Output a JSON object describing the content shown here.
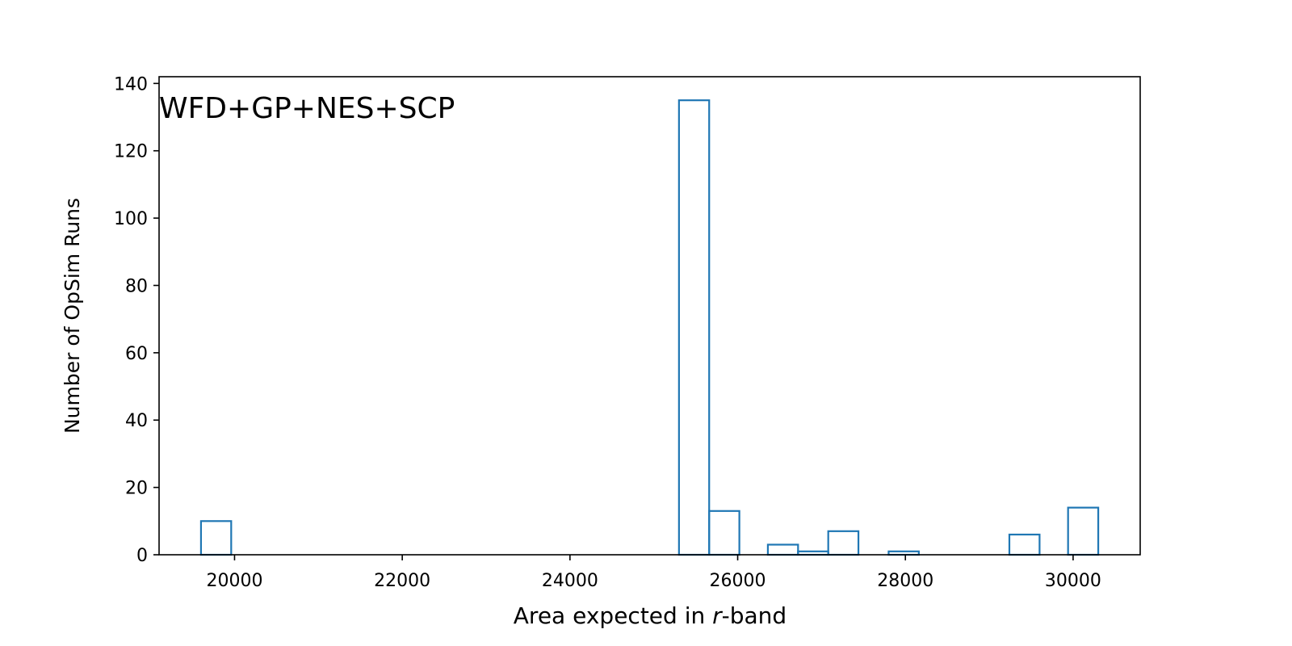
{
  "chart_data": {
    "type": "bar",
    "histogram": true,
    "annotation": "WFD+GP+NES+SCP",
    "xlabel_prefix": "Area expected in ",
    "xlabel_italic": "r",
    "xlabel_suffix": "-band",
    "ylabel": "Number of OpSim Runs",
    "xlim": [
      19100,
      30800
    ],
    "ylim": [
      0,
      142
    ],
    "xticks": [
      20000,
      22000,
      24000,
      26000,
      28000,
      30000
    ],
    "yticks": [
      0,
      20,
      40,
      60,
      80,
      100,
      120,
      140
    ],
    "color": "#1f77b4",
    "bins": [
      {
        "x0": 19600,
        "x1": 19960,
        "count": 10
      },
      {
        "x0": 25300,
        "x1": 25660,
        "count": 135
      },
      {
        "x0": 25660,
        "x1": 26020,
        "count": 13
      },
      {
        "x0": 26360,
        "x1": 26720,
        "count": 3
      },
      {
        "x0": 26720,
        "x1": 27080,
        "count": 1
      },
      {
        "x0": 27080,
        "x1": 27440,
        "count": 7
      },
      {
        "x0": 27800,
        "x1": 28160,
        "count": 1
      },
      {
        "x0": 29240,
        "x1": 29600,
        "count": 6
      },
      {
        "x0": 29940,
        "x1": 30300,
        "count": 14
      }
    ]
  }
}
